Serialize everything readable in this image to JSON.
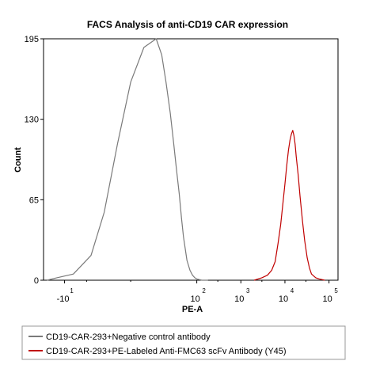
{
  "chart_data": {
    "type": "line",
    "title": "FACS Analysis of anti-CD19 CAR expression",
    "xlabel": "PE-A",
    "ylabel": "Count",
    "xscale": "log (biexponential)",
    "ylim": [
      0,
      195
    ],
    "y_ticks": [
      0,
      65,
      130,
      195
    ],
    "x_ticks": [
      {
        "value": -10,
        "base": "-10",
        "exp": "1"
      },
      {
        "value": 100,
        "base": "10",
        "exp": "2"
      },
      {
        "value": 1000,
        "base": "10",
        "exp": "3"
      },
      {
        "value": 10000,
        "base": "10",
        "exp": "4"
      },
      {
        "value": 100000,
        "base": "10",
        "exp": "5"
      }
    ],
    "grid": false,
    "legend_position": "bottom",
    "series": [
      {
        "name": "CD19-CAR-293+Negative control antibody",
        "color": "#7a7a7a",
        "x": [
          -25,
          -15,
          -8,
          -4,
          -1,
          2,
          5,
          8,
          12,
          16,
          20,
          25,
          30,
          35,
          40,
          45,
          50,
          60,
          70,
          80,
          90,
          100,
          130,
          180
        ],
        "y": [
          0,
          2,
          5,
          20,
          55,
          110,
          160,
          188,
          195,
          182,
          160,
          135,
          110,
          88,
          70,
          50,
          35,
          16,
          8,
          4,
          2,
          1,
          0,
          0
        ]
      },
      {
        "name": "CD19-CAR-293+PE-Labeled Anti-FMC63 scFv Antibody (Y45)",
        "color": "#c00000",
        "x": [
          2000,
          3000,
          4000,
          5000,
          6000,
          7000,
          8000,
          9000,
          10000,
          11000,
          12000,
          13000,
          14000,
          15000,
          16000,
          17000,
          18000,
          20000,
          22000,
          25000,
          28000,
          32000,
          36000,
          40000,
          50000,
          60000,
          80000
        ],
        "y": [
          0,
          2,
          4,
          8,
          15,
          30,
          45,
          62,
          78,
          93,
          105,
          113,
          118,
          121,
          117,
          110,
          100,
          85,
          68,
          48,
          32,
          18,
          10,
          5,
          2,
          1,
          0
        ]
      }
    ]
  }
}
